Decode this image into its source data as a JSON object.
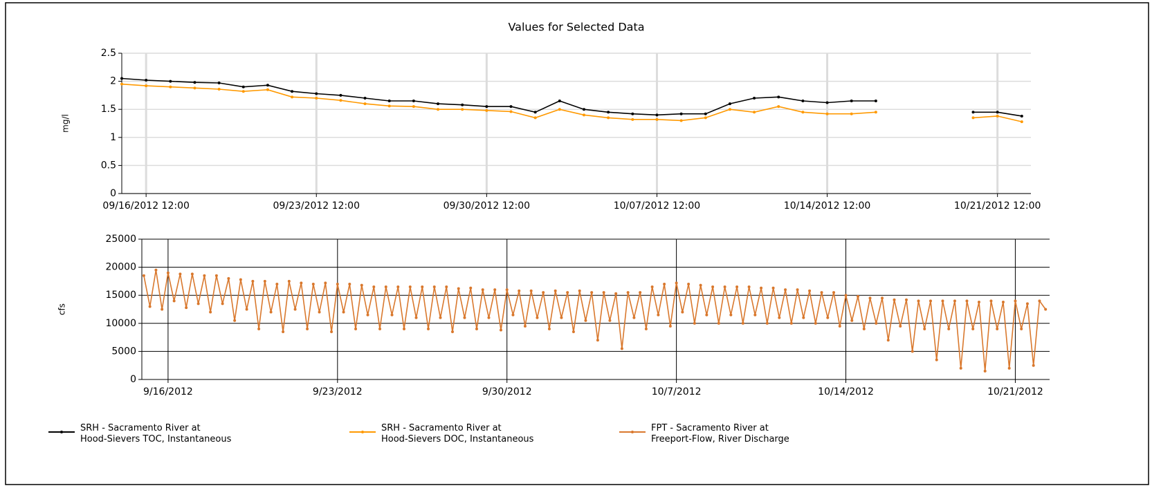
{
  "chart_data": [
    {
      "type": "line",
      "title": "Values for Selected Data",
      "y_label": "mg/l",
      "x": [
        "2012-09-15T12:00",
        "2012-09-16T12:00",
        "2012-09-17T12:00",
        "2012-09-18T12:00",
        "2012-09-19T12:00",
        "2012-09-20T12:00",
        "2012-09-21T12:00",
        "2012-09-22T12:00",
        "2012-09-23T12:00",
        "2012-09-24T12:00",
        "2012-09-25T12:00",
        "2012-09-26T12:00",
        "2012-09-27T12:00",
        "2012-09-28T12:00",
        "2012-09-29T12:00",
        "2012-09-30T12:00",
        "2012-10-01T12:00",
        "2012-10-02T12:00",
        "2012-10-03T12:00",
        "2012-10-04T12:00",
        "2012-10-05T12:00",
        "2012-10-06T12:00",
        "2012-10-07T12:00",
        "2012-10-08T12:00",
        "2012-10-09T12:00",
        "2012-10-10T12:00",
        "2012-10-11T12:00",
        "2012-10-12T12:00",
        "2012-10-13T12:00",
        "2012-10-14T12:00",
        "2012-10-15T12:00",
        "2012-10-16T12:00",
        "2012-10-17T12:00",
        "2012-10-18T12:00",
        "2012-10-19T12:00",
        "2012-10-20T12:00",
        "2012-10-21T12:00",
        "2012-10-22T12:00"
      ],
      "series": [
        {
          "name": "SRH - Sacramento River at\nHood-Sievers TOC, Instantaneous",
          "color": "#000000",
          "values": [
            2.05,
            2.02,
            2.0,
            1.98,
            1.97,
            1.9,
            1.93,
            1.82,
            1.78,
            1.75,
            1.7,
            1.65,
            1.65,
            1.6,
            1.58,
            1.55,
            1.55,
            1.45,
            1.65,
            1.5,
            1.45,
            1.42,
            1.4,
            1.42,
            1.42,
            1.6,
            1.7,
            1.72,
            1.65,
            1.62,
            1.65,
            1.65,
            null,
            null,
            null,
            1.45,
            1.45,
            1.38
          ]
        },
        {
          "name": "SRH - Sacramento River at\nHood-Sievers DOC, Instantaneous",
          "color": "#ff9900",
          "values": [
            1.95,
            1.92,
            1.9,
            1.88,
            1.86,
            1.82,
            1.85,
            1.72,
            1.7,
            1.66,
            1.6,
            1.56,
            1.55,
            1.5,
            1.5,
            1.48,
            1.46,
            1.35,
            1.5,
            1.4,
            1.35,
            1.32,
            1.32,
            1.3,
            1.35,
            1.5,
            1.45,
            1.55,
            1.45,
            1.42,
            1.42,
            1.45,
            null,
            null,
            null,
            1.35,
            1.38,
            1.28
          ]
        }
      ],
      "xlim": [
        "2012-09-15T12:00",
        "2012-10-22T21:00"
      ],
      "xticks": [
        {
          "value": "2012-09-16T12:00",
          "label": "09/16/2012 12:00"
        },
        {
          "value": "2012-09-23T12:00",
          "label": "09/23/2012 12:00"
        },
        {
          "value": "2012-09-30T12:00",
          "label": "09/30/2012 12:00"
        },
        {
          "value": "2012-10-07T12:00",
          "label": "10/07/2012 12:00"
        },
        {
          "value": "2012-10-14T12:00",
          "label": "10/14/2012 12:00"
        },
        {
          "value": "2012-10-21T12:00",
          "label": "10/21/2012 12:00"
        }
      ],
      "ylim": [
        0,
        2.5
      ],
      "yticks": [
        0,
        0.5,
        1,
        1.5,
        2,
        2.5
      ],
      "grid": true
    },
    {
      "type": "line",
      "y_label": "cfs",
      "x": [
        "2012-09-15T00:00",
        "2012-09-15T06:00",
        "2012-09-15T12:00",
        "2012-09-15T18:00",
        "2012-09-16T00:00",
        "2012-09-16T06:00",
        "2012-09-16T12:00",
        "2012-09-16T18:00",
        "2012-09-17T00:00",
        "2012-09-17T06:00",
        "2012-09-17T12:00",
        "2012-09-17T18:00",
        "2012-09-18T00:00",
        "2012-09-18T06:00",
        "2012-09-18T12:00",
        "2012-09-18T18:00",
        "2012-09-19T00:00",
        "2012-09-19T06:00",
        "2012-09-19T12:00",
        "2012-09-19T18:00",
        "2012-09-20T00:00",
        "2012-09-20T06:00",
        "2012-09-20T12:00",
        "2012-09-20T18:00",
        "2012-09-21T00:00",
        "2012-09-21T06:00",
        "2012-09-21T12:00",
        "2012-09-21T18:00",
        "2012-09-22T00:00",
        "2012-09-22T06:00",
        "2012-09-22T12:00",
        "2012-09-22T18:00",
        "2012-09-23T00:00",
        "2012-09-23T06:00",
        "2012-09-23T12:00",
        "2012-09-23T18:00",
        "2012-09-24T00:00",
        "2012-09-24T06:00",
        "2012-09-24T12:00",
        "2012-09-24T18:00",
        "2012-09-25T00:00",
        "2012-09-25T06:00",
        "2012-09-25T12:00",
        "2012-09-25T18:00",
        "2012-09-26T00:00",
        "2012-09-26T06:00",
        "2012-09-26T12:00",
        "2012-09-26T18:00",
        "2012-09-27T00:00",
        "2012-09-27T06:00",
        "2012-09-27T12:00",
        "2012-09-27T18:00",
        "2012-09-28T00:00",
        "2012-09-28T06:00",
        "2012-09-28T12:00",
        "2012-09-28T18:00",
        "2012-09-29T00:00",
        "2012-09-29T06:00",
        "2012-09-29T12:00",
        "2012-09-29T18:00",
        "2012-09-30T00:00",
        "2012-09-30T06:00",
        "2012-09-30T12:00",
        "2012-09-30T18:00",
        "2012-10-01T00:00",
        "2012-10-01T06:00",
        "2012-10-01T12:00",
        "2012-10-01T18:00",
        "2012-10-02T00:00",
        "2012-10-02T06:00",
        "2012-10-02T12:00",
        "2012-10-02T18:00",
        "2012-10-03T00:00",
        "2012-10-03T06:00",
        "2012-10-03T12:00",
        "2012-10-03T18:00",
        "2012-10-04T00:00",
        "2012-10-04T06:00",
        "2012-10-04T12:00",
        "2012-10-04T18:00",
        "2012-10-05T00:00",
        "2012-10-05T06:00",
        "2012-10-05T12:00",
        "2012-10-05T18:00",
        "2012-10-06T00:00",
        "2012-10-06T06:00",
        "2012-10-06T12:00",
        "2012-10-06T18:00",
        "2012-10-07T00:00",
        "2012-10-07T06:00",
        "2012-10-07T12:00",
        "2012-10-07T18:00",
        "2012-10-08T00:00",
        "2012-10-08T06:00",
        "2012-10-08T12:00",
        "2012-10-08T18:00",
        "2012-10-09T00:00",
        "2012-10-09T06:00",
        "2012-10-09T12:00",
        "2012-10-09T18:00",
        "2012-10-10T00:00",
        "2012-10-10T06:00",
        "2012-10-10T12:00",
        "2012-10-10T18:00",
        "2012-10-11T00:00",
        "2012-10-11T06:00",
        "2012-10-11T12:00",
        "2012-10-11T18:00",
        "2012-10-12T00:00",
        "2012-10-12T06:00",
        "2012-10-12T12:00",
        "2012-10-12T18:00",
        "2012-10-13T00:00",
        "2012-10-13T06:00",
        "2012-10-13T12:00",
        "2012-10-13T18:00",
        "2012-10-14T00:00",
        "2012-10-14T06:00",
        "2012-10-14T12:00",
        "2012-10-14T18:00",
        "2012-10-15T00:00",
        "2012-10-15T06:00",
        "2012-10-15T12:00",
        "2012-10-15T18:00",
        "2012-10-16T00:00",
        "2012-10-16T06:00",
        "2012-10-16T12:00",
        "2012-10-16T18:00",
        "2012-10-17T00:00",
        "2012-10-17T06:00",
        "2012-10-17T12:00",
        "2012-10-17T18:00",
        "2012-10-18T00:00",
        "2012-10-18T06:00",
        "2012-10-18T12:00",
        "2012-10-18T18:00",
        "2012-10-19T00:00",
        "2012-10-19T06:00",
        "2012-10-19T12:00",
        "2012-10-19T18:00",
        "2012-10-20T00:00",
        "2012-10-20T06:00",
        "2012-10-20T12:00",
        "2012-10-20T18:00",
        "2012-10-21T00:00",
        "2012-10-21T06:00",
        "2012-10-21T12:00",
        "2012-10-21T18:00",
        "2012-10-22T00:00",
        "2012-10-22T06:00"
      ],
      "series": [
        {
          "name": "FPT - Sacramento River at\nFreeport-Flow, River Discharge",
          "color": "#d9782d",
          "values": [
            18500,
            13000,
            19500,
            12500,
            19000,
            14000,
            18800,
            12800,
            18800,
            13500,
            18500,
            12000,
            18500,
            13500,
            18000,
            10500,
            17800,
            12500,
            17500,
            9000,
            17500,
            12000,
            17000,
            8500,
            17500,
            12500,
            17200,
            9000,
            17000,
            12000,
            17200,
            8500,
            17000,
            12000,
            17000,
            9000,
            16800,
            11500,
            16500,
            9000,
            16500,
            11500,
            16500,
            9000,
            16500,
            11000,
            16500,
            9000,
            16500,
            11000,
            16500,
            8500,
            16200,
            11000,
            16300,
            9000,
            16000,
            11000,
            16000,
            8800,
            16000,
            11500,
            15800,
            9500,
            15800,
            11000,
            15500,
            9000,
            15800,
            11000,
            15500,
            8500,
            15800,
            10500,
            15500,
            7000,
            15500,
            10500,
            15300,
            5500,
            15500,
            11000,
            15500,
            9000,
            16500,
            11500,
            17000,
            9500,
            17200,
            12000,
            17000,
            10000,
            16800,
            11500,
            16500,
            10000,
            16500,
            11500,
            16500,
            10000,
            16500,
            11500,
            16300,
            10000,
            16300,
            11000,
            16000,
            10000,
            16000,
            11000,
            15800,
            10000,
            15500,
            11000,
            15500,
            9500,
            15000,
            10500,
            14800,
            9000,
            14500,
            10000,
            14500,
            7000,
            14200,
            9500,
            14200,
            5000,
            14000,
            9000,
            14000,
            3500,
            14000,
            9000,
            14000,
            2000,
            14000,
            9000,
            13800,
            1500,
            14000,
            9000,
            13800,
            2000,
            14000,
            9000,
            13500,
            2500,
            14000,
            12500
          ]
        }
      ],
      "xlim": [
        "2012-09-14T22:00",
        "2012-10-22T10:00"
      ],
      "xticks": [
        {
          "value": "2012-09-16T00:00",
          "label": "9/16/2012"
        },
        {
          "value": "2012-09-23T00:00",
          "label": "9/23/2012"
        },
        {
          "value": "2012-09-30T00:00",
          "label": "9/30/2012"
        },
        {
          "value": "2012-10-07T00:00",
          "label": "10/7/2012"
        },
        {
          "value": "2012-10-14T00:00",
          "label": "10/14/2012"
        },
        {
          "value": "2012-10-21T00:00",
          "label": "10/21/2012"
        }
      ],
      "ylim": [
        0,
        25000
      ],
      "yticks": [
        0,
        5000,
        10000,
        15000,
        20000,
        25000
      ],
      "grid": true
    }
  ]
}
